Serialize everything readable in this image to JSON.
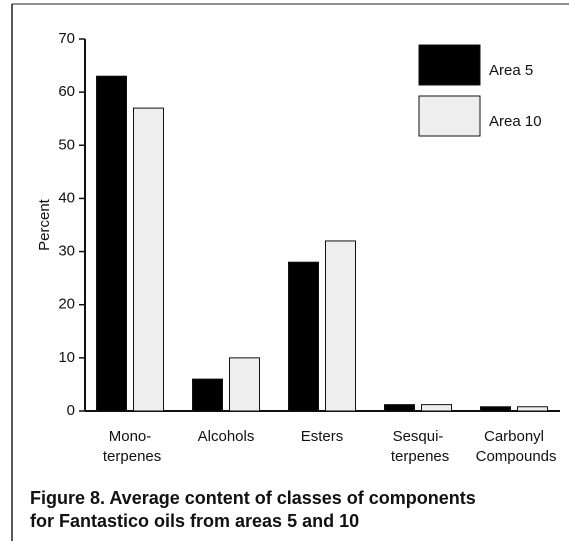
{
  "chart_data": {
    "type": "bar",
    "caption": [
      "Figure 8. Average content of classes of components",
      "for Fantastico oils from areas 5 and 10"
    ],
    "y_label": "Percent",
    "categories": [
      "Mono-\nterpenes",
      "Alcohols",
      "Esters",
      "Sesqui-\nterpenes",
      "Carbonyl\nCompounds"
    ],
    "series": [
      {
        "name": "Area 5",
        "color": "#000000",
        "values": [
          63,
          6,
          28,
          1.2,
          0.8
        ]
      },
      {
        "name": "Area 10",
        "color": "#eeeeee",
        "values": [
          57,
          10,
          32,
          1.2,
          0.8
        ]
      }
    ],
    "ylim": [
      0,
      70
    ],
    "yticks": [
      0,
      10,
      20,
      30,
      40,
      50,
      60,
      70
    ]
  }
}
